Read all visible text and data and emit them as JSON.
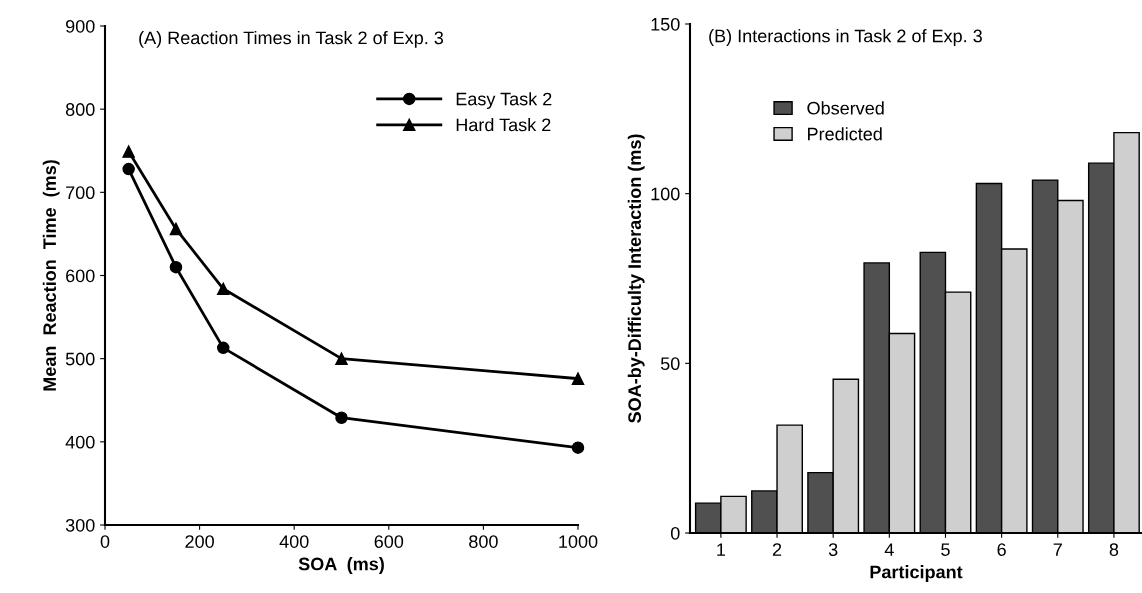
{
  "chart_data": [
    {
      "type": "line",
      "title": "(A) Reaction Times in Task 2 of Exp. 3",
      "xlabel": "SOA  (ms)",
      "ylabel": "Mean  Reaction  Time  (ms)",
      "x": [
        50,
        150,
        250,
        500,
        1000
      ],
      "series": [
        {
          "name": "Easy Task 2",
          "color": "#000000",
          "marker": "circle",
          "values": [
            728,
            610,
            513,
            429,
            393
          ]
        },
        {
          "name": "Hard Task 2",
          "color": "#000000",
          "marker": "triangle",
          "values": [
            749,
            656,
            584,
            500,
            476
          ]
        }
      ],
      "xlim": [
        0,
        1000
      ],
      "xticks": [
        0,
        200,
        400,
        600,
        800,
        1000
      ],
      "ylim": [
        300,
        900
      ],
      "yticks": [
        300,
        400,
        500,
        600,
        700,
        800,
        900
      ],
      "grid": false,
      "legend": "top right",
      "line_style": "solid"
    },
    {
      "type": "bar",
      "title": "(B) Interactions in Task 2 of Exp. 3",
      "xlabel": "Participant",
      "ylabel": "SOA-by-Difficulty Interaction (ms)",
      "categories": [
        "1",
        "2",
        "3",
        "4",
        "5",
        "6",
        "7",
        "8"
      ],
      "series": [
        {
          "name": "Observed",
          "color": "#505050",
          "values": [
            8.8,
            12.4,
            17.8,
            79.6,
            82.7,
            103,
            104,
            109
          ]
        },
        {
          "name": "Predicted",
          "color": "#cfcfcf",
          "values": [
            10.8,
            31.8,
            45.3,
            58.8,
            71,
            83.7,
            98,
            118
          ]
        }
      ],
      "ylim": [
        0,
        150
      ],
      "yticks": [
        0,
        50,
        100,
        150
      ],
      "grid": false,
      "legend": "top left"
    }
  ]
}
